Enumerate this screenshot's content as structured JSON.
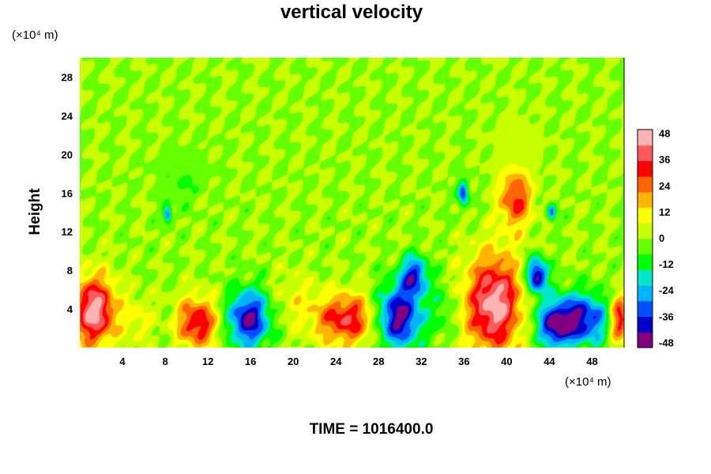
{
  "figure": {
    "title": "vertical velocity",
    "y_unit": "(×10⁴ m)",
    "x_unit": "(×10⁴ m)",
    "ylabel": "Height",
    "time_label": "TIME = 1016400.0"
  },
  "chart_data": {
    "type": "heatmap",
    "title": "vertical velocity",
    "xlabel": "",
    "ylabel": "Height",
    "x_unit": "(×10⁴ m)",
    "y_unit": "(×10⁴ m)",
    "xlim": [
      0,
      51
    ],
    "ylim": [
      0,
      30
    ],
    "x_ticks": [
      4,
      8,
      12,
      16,
      20,
      24,
      28,
      32,
      36,
      40,
      44,
      48
    ],
    "y_ticks": [
      4,
      8,
      12,
      16,
      20,
      24,
      28
    ],
    "colorbar": {
      "range": [
        -50,
        50
      ],
      "ticks": [
        48,
        36,
        24,
        12,
        0,
        -12,
        -24,
        -36,
        -48
      ],
      "colors": [
        "#800080",
        "#0000c8",
        "#0050ff",
        "#00b4ff",
        "#00e6c8",
        "#00ff00",
        "#64ff00",
        "#c8ff00",
        "#ffff00",
        "#ffb400",
        "#ff6400",
        "#ff0000",
        "#ff5a5a",
        "#ffb4b4"
      ]
    },
    "background_value": 0,
    "features": [
      {
        "x": 1.3,
        "y": 3.8,
        "value": 48,
        "rx": 2.0,
        "ry": 3.5
      },
      {
        "x": 11.0,
        "y": 2.6,
        "value": 36,
        "rx": 1.9,
        "ry": 2.6
      },
      {
        "x": 15.8,
        "y": 3.0,
        "value": -44,
        "rx": 2.0,
        "ry": 3.0
      },
      {
        "x": 25.0,
        "y": 3.0,
        "value": 36,
        "rx": 3.0,
        "ry": 2.6
      },
      {
        "x": 29.8,
        "y": 3.2,
        "value": -48,
        "rx": 2.2,
        "ry": 3.2
      },
      {
        "x": 31.3,
        "y": 7.5,
        "value": -36,
        "rx": 1.3,
        "ry": 2.0
      },
      {
        "x": 38.8,
        "y": 4.5,
        "value": 48,
        "rx": 2.6,
        "ry": 5.0
      },
      {
        "x": 42.8,
        "y": 7.5,
        "value": -48,
        "rx": 1.0,
        "ry": 1.8
      },
      {
        "x": 46.5,
        "y": 3.0,
        "value": -44,
        "rx": 3.3,
        "ry": 2.6
      },
      {
        "x": 50.5,
        "y": 3.0,
        "value": 40,
        "rx": 1.0,
        "ry": 2.5
      },
      {
        "x": 40.8,
        "y": 15.5,
        "value": 32,
        "rx": 1.5,
        "ry": 3.0
      },
      {
        "x": 35.9,
        "y": 16.0,
        "value": -36,
        "rx": 0.5,
        "ry": 1.3
      },
      {
        "x": 8.2,
        "y": 13.8,
        "value": -36,
        "rx": 0.4,
        "ry": 0.8
      },
      {
        "x": 44.2,
        "y": 14.0,
        "value": -30,
        "rx": 0.4,
        "ry": 1.0
      },
      {
        "x": 9.5,
        "y": 17.0,
        "value": -8,
        "rx": 2.0,
        "ry": 2.0
      },
      {
        "x": 20.0,
        "y": 5.0,
        "value": 8,
        "rx": 2.0,
        "ry": 3.0
      },
      {
        "x": 34.0,
        "y": 4.0,
        "value": -10,
        "rx": 1.2,
        "ry": 3.0
      },
      {
        "x": 5.5,
        "y": 3.0,
        "value": 10,
        "rx": 1.3,
        "ry": 2.5
      },
      {
        "x": 44.5,
        "y": 2.0,
        "value": -24,
        "rx": 1.5,
        "ry": 2.0
      }
    ]
  }
}
